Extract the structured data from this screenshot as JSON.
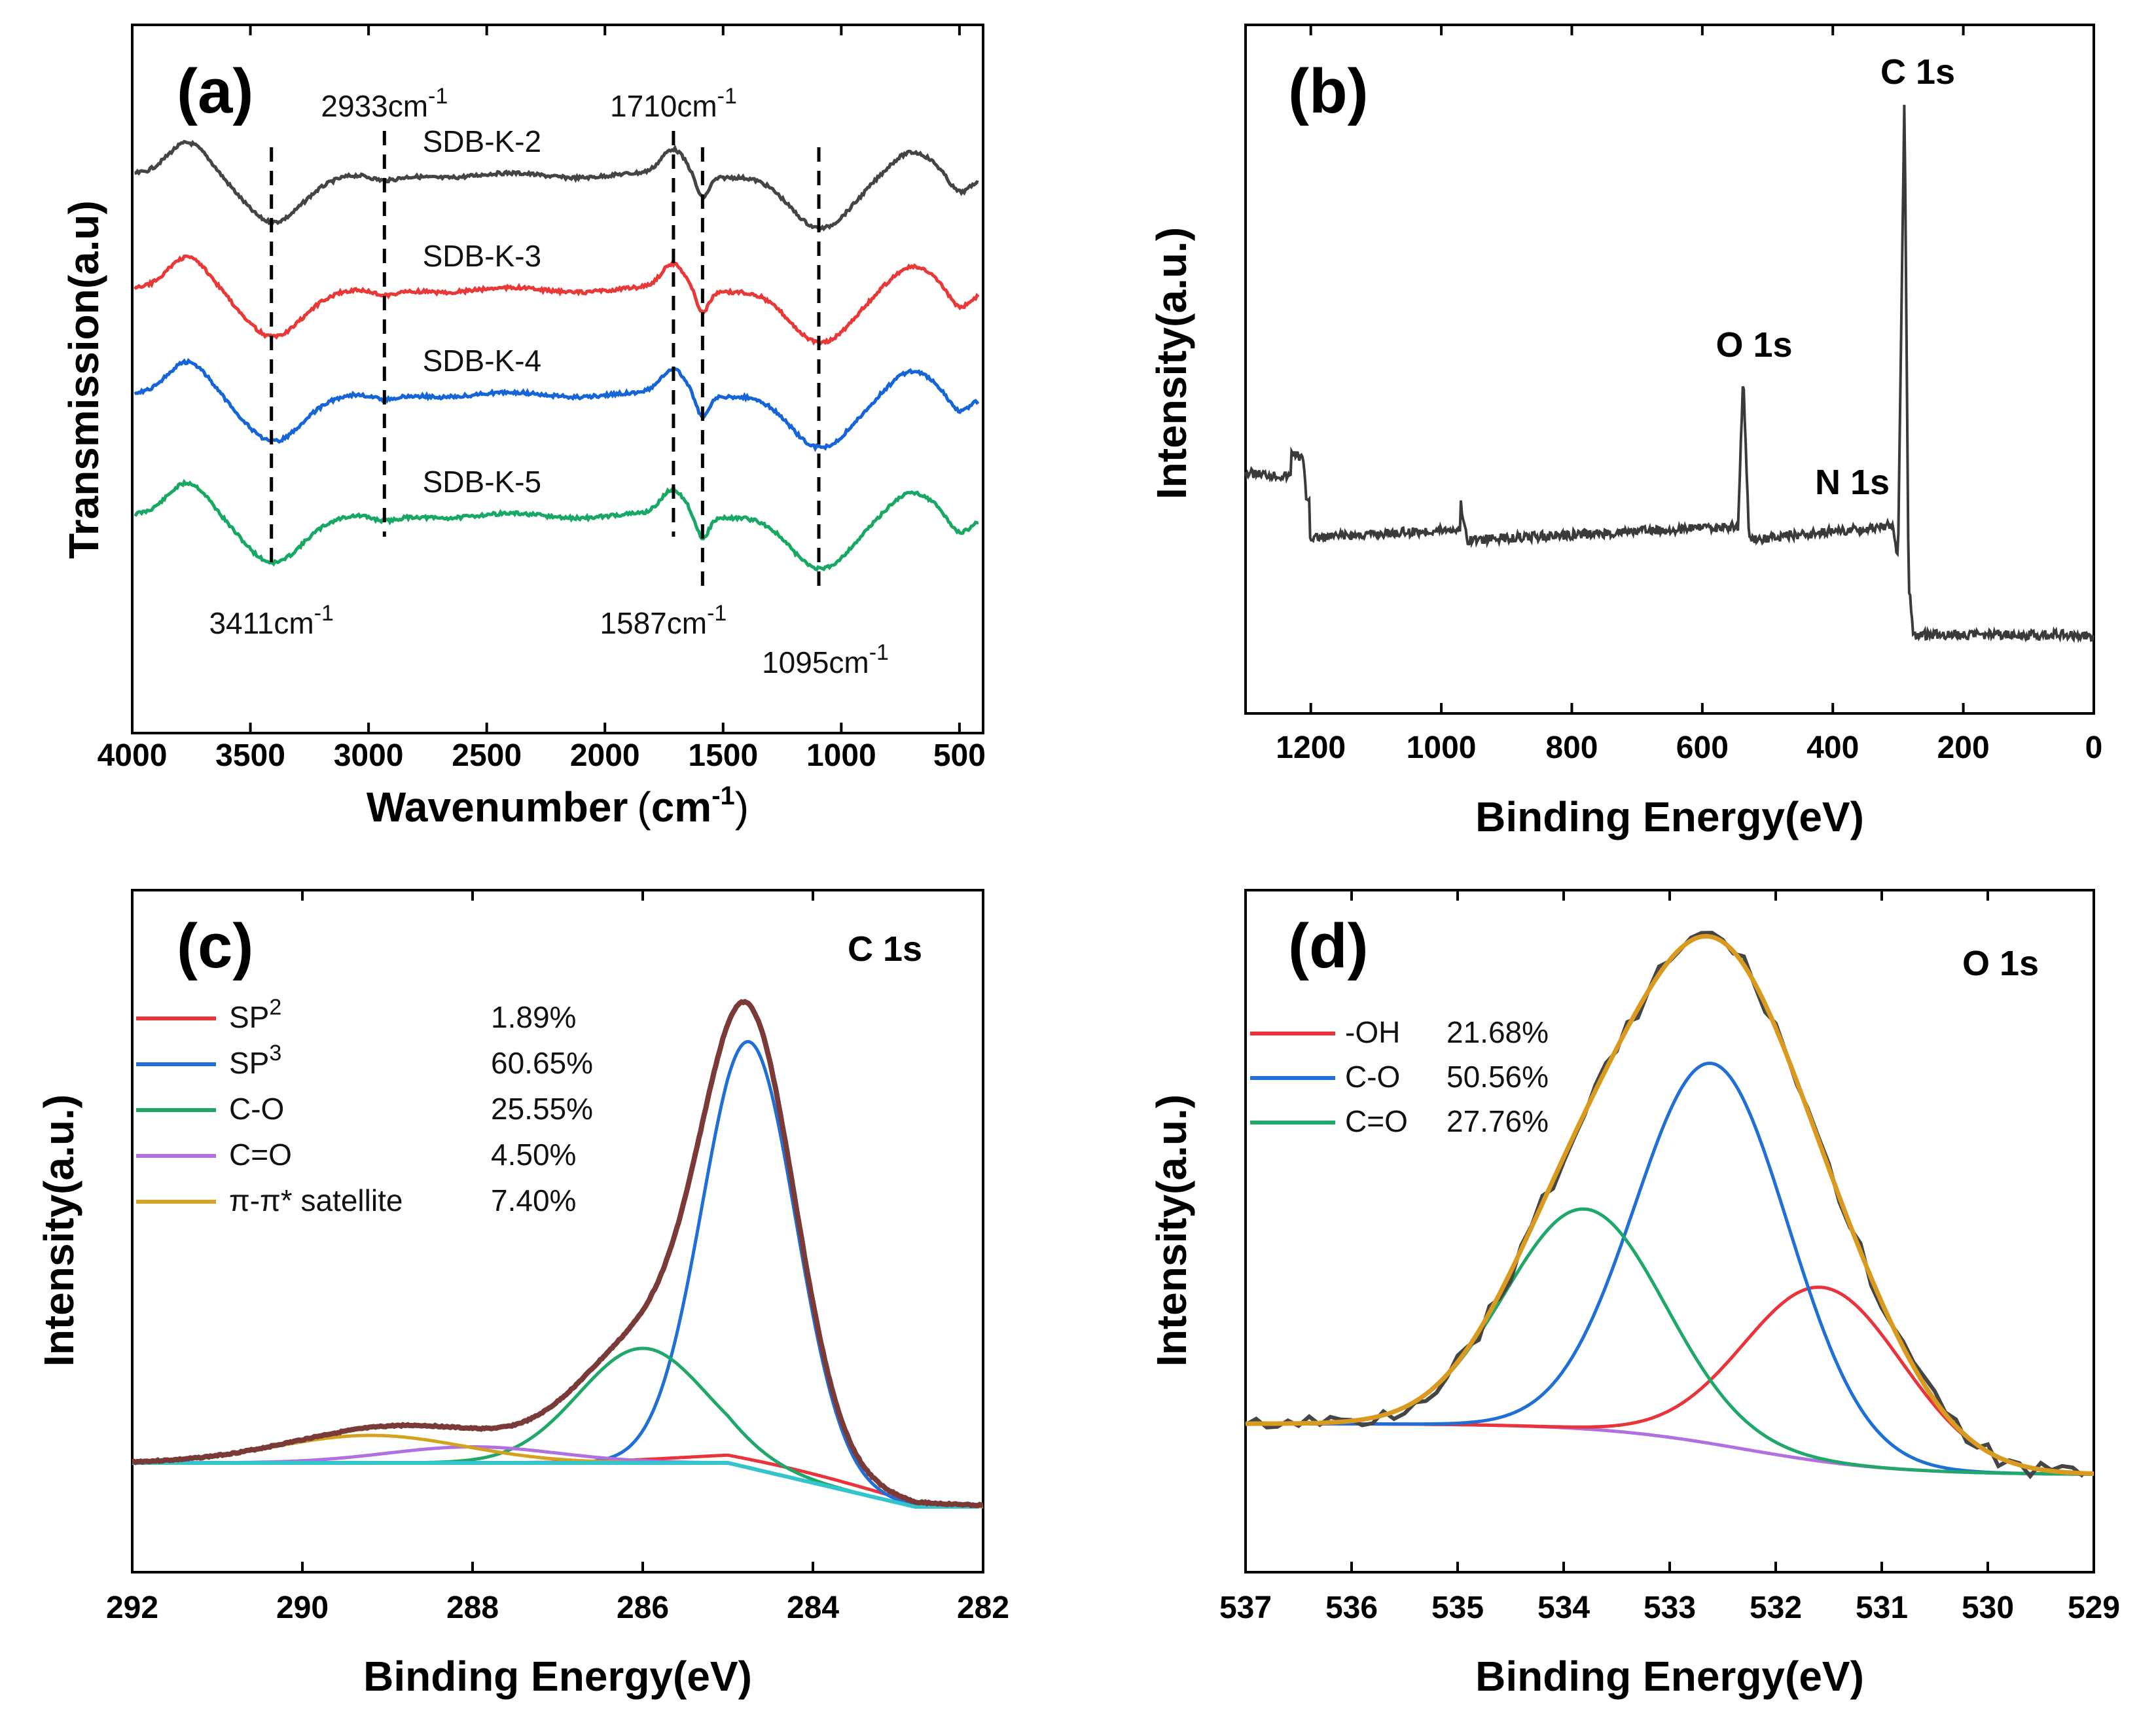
{
  "colors": {
    "sdb2": "#444444",
    "sdb3": "#e83838",
    "sdb4": "#1565d8",
    "sdb5": "#18a865",
    "sp2": "#e8343a",
    "sp3": "#1f6fd6",
    "co": "#20a86a",
    "c_eq_o": "#b070e0",
    "satellite": "#d4a21e",
    "envelope": "#7a3b38",
    "baseline": "#33c4cc",
    "raw": "#454545",
    "fit": "#d99a20",
    "survey": "#3a3a3a"
  },
  "chart_data": [
    {
      "id": "a",
      "panel_label": "(a)",
      "type": "line",
      "xlabel": "Wavenumber",
      "xlabel_unit_open": "(",
      "xlabel_unit": "cm",
      "xlabel_unit_sup": "-1",
      "xlabel_unit_close": ")",
      "ylabel": "Transmission(a.u)",
      "xlim": [
        4000,
        400
      ],
      "x_reversed": true,
      "xticks": [
        "4000",
        "3500",
        "3000",
        "2500",
        "2000",
        "1500",
        "1000",
        "500"
      ],
      "series": [
        {
          "name": "SDB-K-5",
          "color_key": "sdb5",
          "offset": 3,
          "label_at": 2550
        },
        {
          "name": "SDB-K-4",
          "color_key": "sdb4",
          "offset": 2,
          "label_at": 2550
        },
        {
          "name": "SDB-K-3",
          "color_key": "sdb3",
          "offset": 1,
          "label_at": 2550
        },
        {
          "name": "SDB-K-2",
          "color_key": "sdb2",
          "offset": 0,
          "label_at": 2550
        }
      ],
      "annotations": [
        {
          "wavenumber": 3411,
          "text": "3411cm",
          "sup": "-1",
          "anchor": "below"
        },
        {
          "wavenumber": 2933,
          "text": "2933cm",
          "sup": "-1",
          "anchor": "above"
        },
        {
          "wavenumber": 1710,
          "text": "1710cm",
          "sup": "-1",
          "anchor": "above"
        },
        {
          "wavenumber": 1587,
          "text": "1587cm",
          "sup": "-1",
          "anchor": "below"
        },
        {
          "wavenumber": 1095,
          "text": "1095cm",
          "sup": "-1",
          "anchor": "below"
        }
      ]
    },
    {
      "id": "b",
      "panel_label": "(b)",
      "type": "line",
      "xlabel": "Binding Energy(eV)",
      "ylabel": "Intensity(a.u.)",
      "xlim": [
        1300,
        0
      ],
      "x_reversed": true,
      "xticks": [
        "1200",
        "1000",
        "800",
        "600",
        "400",
        "200",
        "0"
      ],
      "peaks": [
        {
          "name": "C 1s",
          "energy": 284.8
        },
        {
          "name": "O 1s",
          "energy": 532.5
        },
        {
          "name": "N 1s",
          "energy": 400
        }
      ]
    },
    {
      "id": "c",
      "panel_label": "(c)",
      "type": "line",
      "title": "C 1s",
      "xlabel": "Binding Energy(eV)",
      "ylabel": "Intensity(a.u.)",
      "xlim": [
        292,
        282
      ],
      "x_reversed": true,
      "xticks": [
        "292",
        "290",
        "288",
        "286",
        "284",
        "282"
      ],
      "series": [
        {
          "name": "SP",
          "sup": "2",
          "percent": "1.89%",
          "color_key": "sp2",
          "center": 284.3,
          "amplitude": 0.02,
          "sigma": 1.2
        },
        {
          "name": "SP",
          "sup": "3",
          "percent": "60.65%",
          "color_key": "sp3",
          "center": 284.75,
          "amplitude": 0.93,
          "sigma": 0.55
        },
        {
          "name": "C-O",
          "sup": "",
          "percent": "25.55%",
          "color_key": "co",
          "center": 286.0,
          "amplitude": 0.25,
          "sigma": 0.75
        },
        {
          "name": "C=O",
          "sup": "",
          "percent": "4.50%",
          "color_key": "c_eq_o",
          "center": 288.0,
          "amplitude": 0.035,
          "sigma": 1.0
        },
        {
          "name": "π-π* satellite",
          "sup": "",
          "percent": "7.40%",
          "color_key": "satellite",
          "center": 289.2,
          "amplitude": 0.06,
          "sigma": 1.1
        }
      ]
    },
    {
      "id": "d",
      "panel_label": "(d)",
      "type": "line",
      "title": "O 1s",
      "xlabel": "Binding Energy(eV)",
      "ylabel": "Intensity(a.u.)",
      "xlim": [
        537,
        529
      ],
      "x_reversed": true,
      "xticks": [
        "537",
        "536",
        "535",
        "534",
        "533",
        "532",
        "531",
        "530",
        "529"
      ],
      "series": [
        {
          "name": "-OH",
          "percent": "21.68%",
          "color_key": "sp2",
          "center": 531.55,
          "amplitude": 0.38,
          "sigma": 0.75
        },
        {
          "name": "C-O",
          "percent": "50.56%",
          "color_key": "sp3",
          "center": 532.6,
          "amplitude": 0.83,
          "sigma": 0.72
        },
        {
          "name": "C=O",
          "percent": "27.76%",
          "color_key": "co",
          "center": 533.8,
          "amplitude": 0.48,
          "sigma": 0.75
        }
      ]
    }
  ]
}
